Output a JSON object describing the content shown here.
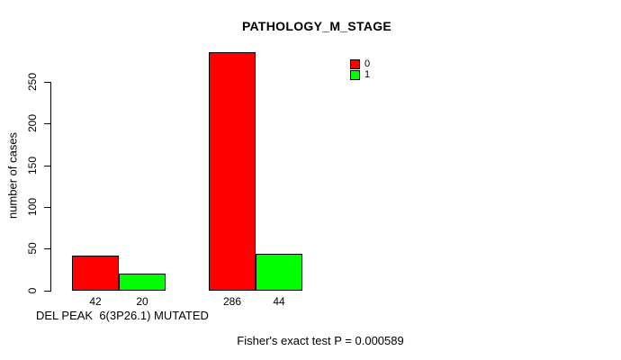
{
  "chart_data": {
    "type": "bar",
    "title": "PATHOLOGY_M_STAGE",
    "ylabel": "number of cases",
    "xlabel": "DEL PEAK  6(3P26.1) MUTATED",
    "ylim": [
      0,
      250
    ],
    "yticks": [
      0,
      50,
      100,
      150,
      200,
      250
    ],
    "grid": false,
    "series": [
      {
        "name": "0",
        "color": "#ff0000",
        "values": [
          42,
          286
        ]
      },
      {
        "name": "1",
        "color": "#00ff00",
        "values": [
          20,
          44
        ]
      }
    ],
    "bar_labels": [
      "42",
      "20",
      "286",
      "44"
    ],
    "legend_position": "top-right-inside",
    "annotation": "Fisher's exact test P = 0.000589",
    "colors": {
      "bar_border": "#000000",
      "axis": "#000000",
      "text": "#000000",
      "background": "#ffffff"
    }
  }
}
